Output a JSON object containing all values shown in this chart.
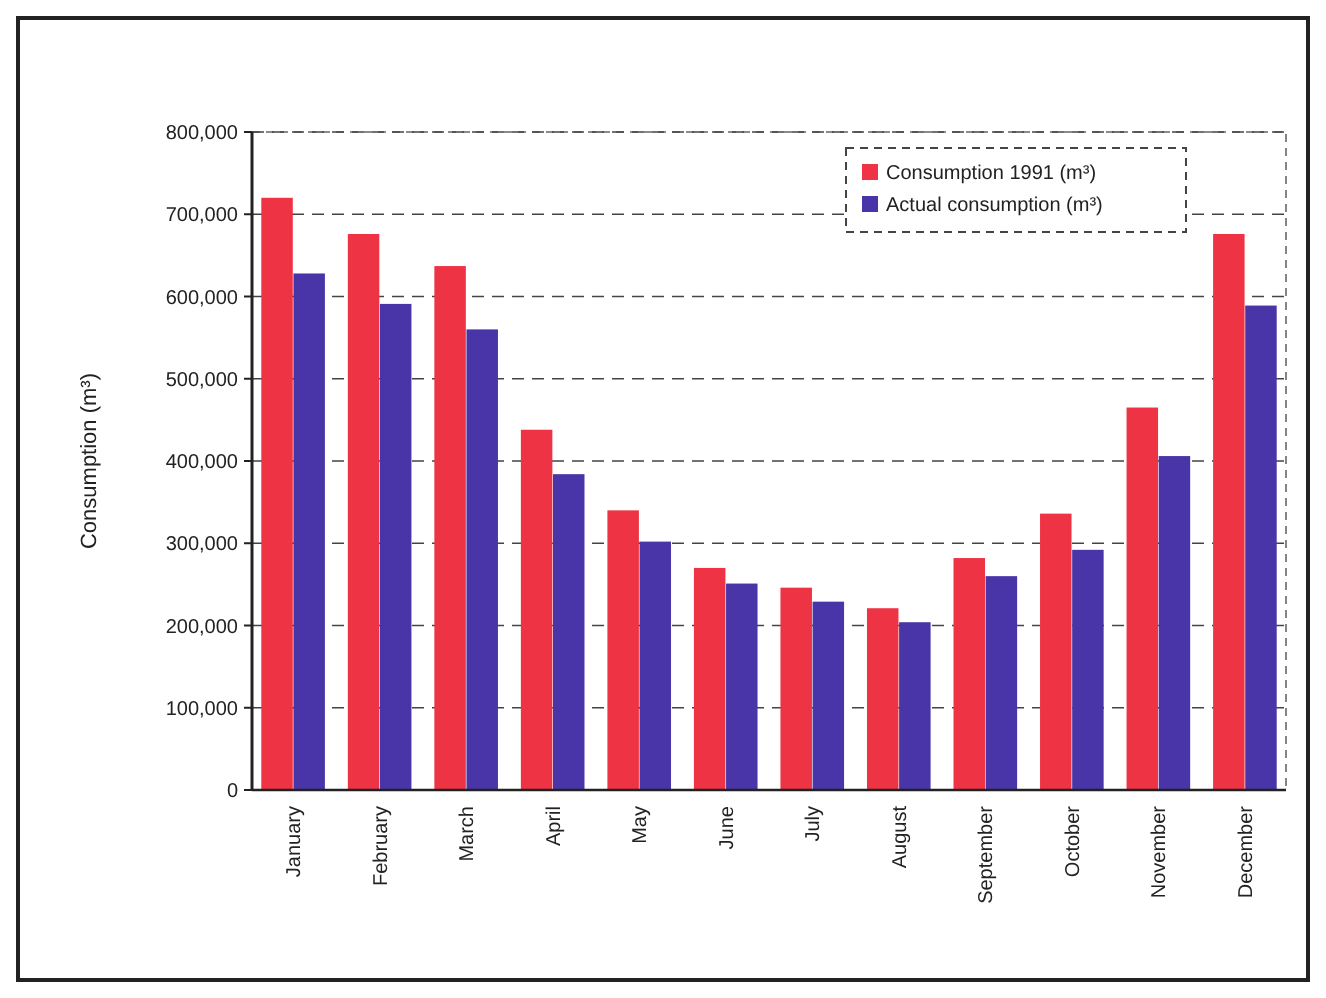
{
  "chart_data": {
    "type": "bar",
    "ylabel": "Consumption (m³)",
    "categories": [
      "January",
      "February",
      "March",
      "April",
      "May",
      "June",
      "July",
      "August",
      "September",
      "October",
      "November",
      "December"
    ],
    "series": [
      {
        "name": "Consumption 1991 (m³)",
        "color": "#ee3344",
        "values": [
          720000,
          676000,
          637000,
          438000,
          340000,
          270000,
          246000,
          221000,
          282000,
          336000,
          465000,
          676000
        ]
      },
      {
        "name": "Actual consumption (m³)",
        "color": "#4a35a8",
        "values": [
          628000,
          591000,
          560000,
          384000,
          302000,
          251000,
          229000,
          204000,
          260000,
          292000,
          406000,
          589000
        ]
      }
    ],
    "ylim": [
      0,
      800000
    ],
    "yticks": [
      {
        "value": 0,
        "label": "0"
      },
      {
        "value": 100000,
        "label": "100,000"
      },
      {
        "value": 200000,
        "label": "200,000"
      },
      {
        "value": 300000,
        "label": "300,000"
      },
      {
        "value": 400000,
        "label": "400,000"
      },
      {
        "value": 500000,
        "label": "500,000"
      },
      {
        "value": 600000,
        "label": "600,000"
      },
      {
        "value": 700000,
        "label": "700,000"
      },
      {
        "value": 800000,
        "label": "800,000"
      }
    ],
    "grid": "y",
    "legend": "top right"
  }
}
